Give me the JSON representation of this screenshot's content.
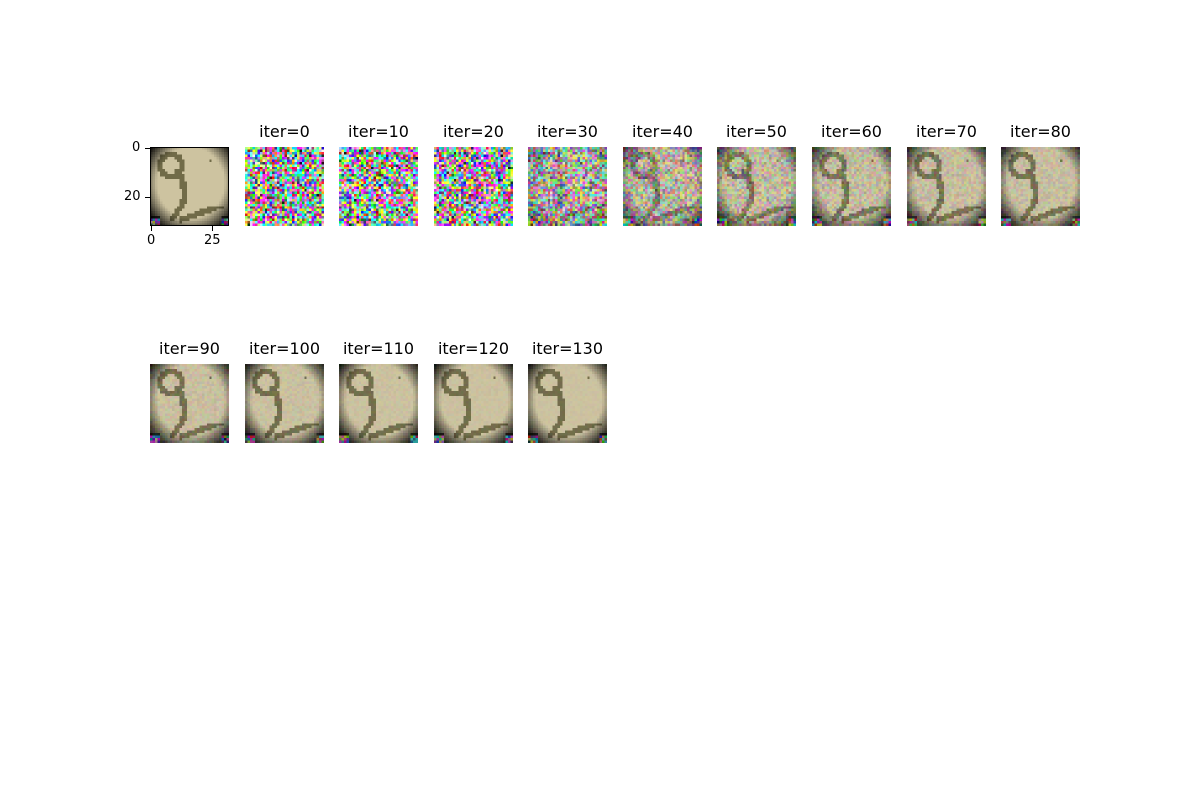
{
  "figure": {
    "original": {
      "y_ticks": [
        "0",
        "20"
      ],
      "x_ticks": [
        "0",
        "25"
      ]
    },
    "iterations": [
      {
        "title": "iter=0",
        "recon": 0.0
      },
      {
        "title": "iter=10",
        "recon": 0.0
      },
      {
        "title": "iter=20",
        "recon": 0.02
      },
      {
        "title": "iter=30",
        "recon": 0.35
      },
      {
        "title": "iter=40",
        "recon": 0.6
      },
      {
        "title": "iter=50",
        "recon": 0.72
      },
      {
        "title": "iter=60",
        "recon": 0.8
      },
      {
        "title": "iter=70",
        "recon": 0.85
      },
      {
        "title": "iter=80",
        "recon": 0.88
      },
      {
        "title": "iter=90",
        "recon": 0.91
      },
      {
        "title": "iter=100",
        "recon": 0.93
      },
      {
        "title": "iter=110",
        "recon": 0.95
      },
      {
        "title": "iter=120",
        "recon": 0.96
      },
      {
        "title": "iter=130",
        "recon": 0.97
      }
    ]
  }
}
